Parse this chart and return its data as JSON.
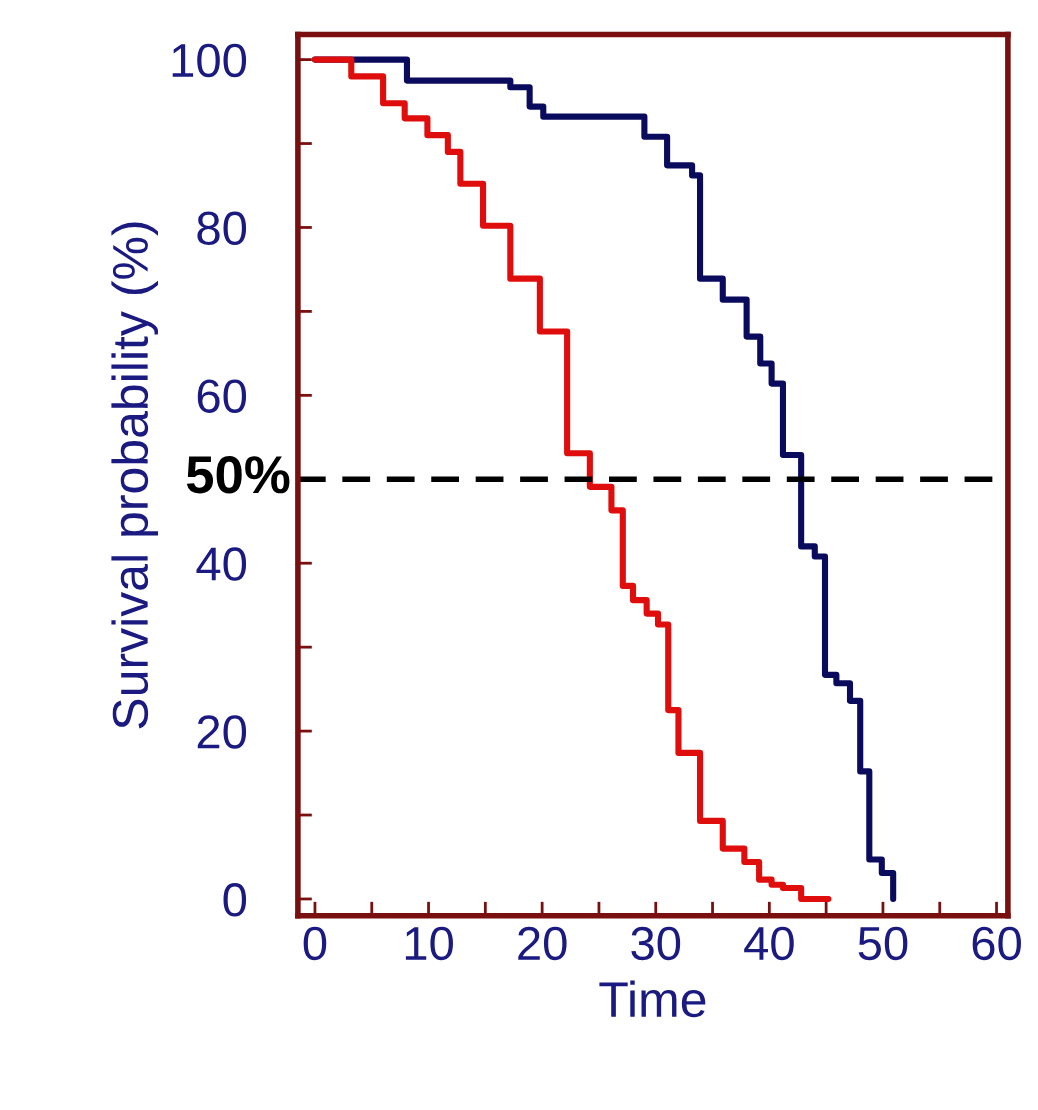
{
  "chart_data": {
    "type": "step",
    "xlabel": "Time",
    "ylabel": "Survival probability (%)",
    "series": [
      {
        "color": "#0b0b5e",
        "x": [
          0,
          8.1,
          17.2,
          18.9,
          20.1,
          29.0,
          31.0,
          33.2,
          33.9,
          35.9,
          38.0,
          39.2,
          40.2,
          41.2,
          42.8,
          44.0,
          44.9,
          45.9,
          47.1,
          48.0,
          48.8,
          49.9,
          50.9,
          50.9
        ],
        "values": [
          100,
          97.5,
          96.7,
          94.4,
          93.2,
          90.8,
          87.4,
          86.2,
          73.9,
          71.4,
          67.0,
          63.8,
          61.4,
          52.9,
          42.0,
          40.8,
          26.7,
          25.7,
          23.6,
          15.2,
          4.7,
          3.1,
          0,
          0
        ]
      },
      {
        "color": "#e00d0d",
        "x": [
          0,
          3.2,
          6.0,
          7.9,
          9.9,
          11.7,
          12.8,
          14.8,
          17.2,
          19.8,
          22.2,
          24.2,
          26.1,
          27.1,
          28.0,
          29.2,
          30.2,
          31.1,
          32.0,
          33.9,
          35.9,
          37.8,
          39.1,
          40.2,
          41.2,
          42.8,
          45.2
        ],
        "values": [
          100,
          98,
          94.8,
          93,
          91,
          89,
          85.2,
          80.2,
          73.9,
          67.6,
          53.1,
          49.1,
          46.3,
          37.3,
          35.6,
          34.0,
          32.7,
          22.5,
          17.4,
          9.3,
          6.0,
          4.4,
          2.3,
          1.7,
          1.3,
          0,
          0
        ]
      }
    ],
    "xlim": [
      -1.5,
      61
    ],
    "ylim": [
      -2,
      103
    ],
    "xticks": [
      0,
      {
        "value": 5,
        "label": null
      },
      10,
      {
        "value": 15,
        "label": null
      },
      20,
      {
        "value": 25,
        "label": null
      },
      30,
      {
        "value": 35,
        "label": null
      },
      40,
      {
        "value": 45,
        "label": null
      },
      50,
      {
        "value": 55,
        "label": null
      },
      60
    ],
    "yticks": [
      0,
      {
        "value": 10,
        "label": null
      },
      20,
      {
        "value": 30,
        "label": null
      },
      40,
      {
        "value": 50,
        "label": null
      },
      60,
      {
        "value": 70,
        "label": null
      },
      80,
      {
        "value": 90,
        "label": null
      },
      100
    ],
    "ref_lines": [
      {
        "axis": "y",
        "value": 50,
        "label": "50%",
        "color": "#000000",
        "line_style": "dashed"
      }
    ],
    "grid": false,
    "legend": false
  }
}
